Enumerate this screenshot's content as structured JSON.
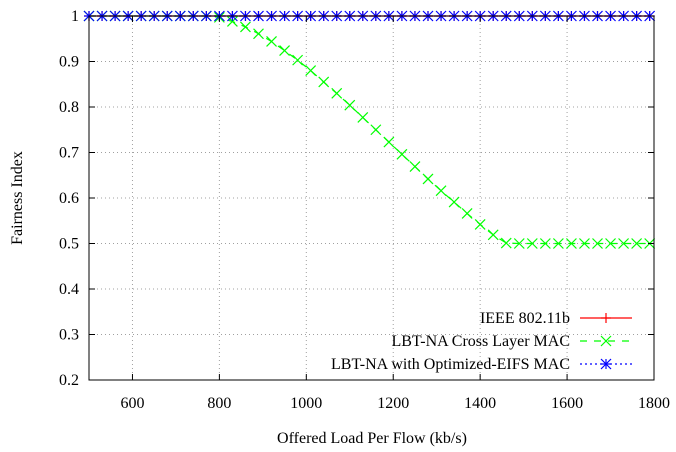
{
  "chart_data": {
    "type": "line",
    "title": "",
    "xlabel": "Offered Load Per Flow (kb/s)",
    "ylabel": "Fairness Index",
    "xlim": [
      500,
      1800
    ],
    "ylim": [
      0.2,
      1.0
    ],
    "x_ticks": [
      600,
      800,
      1000,
      1200,
      1400,
      1600,
      1800
    ],
    "y_ticks": [
      0.2,
      0.3,
      0.4,
      0.5,
      0.6,
      0.7,
      0.8,
      0.9,
      1.0
    ],
    "grid": true,
    "legend_position": "bottom-right",
    "x": [
      500,
      530,
      560,
      590,
      620,
      650,
      680,
      710,
      740,
      770,
      800,
      830,
      860,
      890,
      920,
      950,
      980,
      1010,
      1040,
      1070,
      1100,
      1130,
      1160,
      1190,
      1220,
      1250,
      1280,
      1310,
      1340,
      1370,
      1400,
      1430,
      1460,
      1490,
      1520,
      1550,
      1580,
      1610,
      1640,
      1670,
      1700,
      1730,
      1760,
      1790
    ],
    "series": [
      {
        "name": "IEEE 802.11b",
        "color": "#ff0000",
        "marker": "plus",
        "line": "solid",
        "values": [
          1,
          1,
          1,
          1,
          1,
          1,
          1,
          1,
          1,
          1,
          1,
          1,
          1,
          1,
          1,
          1,
          1,
          1,
          1,
          1,
          1,
          1,
          1,
          1,
          1,
          1,
          1,
          1,
          1,
          1,
          1,
          1,
          1,
          1,
          1,
          1,
          1,
          1,
          1,
          1,
          1,
          1,
          1,
          1
        ]
      },
      {
        "name": "LBT-NA Cross Layer MAC",
        "color": "#00ff00",
        "marker": "cross",
        "line": "dashed",
        "values": [
          1,
          1,
          1,
          1,
          1,
          1,
          1,
          1,
          1,
          1,
          0.997,
          0.988,
          0.976,
          0.961,
          0.944,
          0.924,
          0.903,
          0.88,
          0.855,
          0.83,
          0.804,
          0.777,
          0.75,
          0.723,
          0.696,
          0.669,
          0.642,
          0.616,
          0.591,
          0.566,
          0.542,
          0.519,
          0.501,
          0.5,
          0.5,
          0.5,
          0.5,
          0.5,
          0.5,
          0.5,
          0.5,
          0.5,
          0.5,
          0.5
        ]
      },
      {
        "name": "LBT-NA with Optimized-EIFS MAC",
        "color": "#0000ff",
        "marker": "star",
        "line": "dotted",
        "values": [
          1,
          1,
          1,
          1,
          1,
          1,
          1,
          1,
          1,
          1,
          1,
          1,
          1,
          1,
          1,
          1,
          1,
          1,
          1,
          1,
          1,
          1,
          1,
          1,
          1,
          1,
          1,
          1,
          1,
          1,
          1,
          1,
          1,
          1,
          1,
          1,
          1,
          1,
          1,
          1,
          1,
          1,
          1,
          1
        ]
      }
    ]
  }
}
